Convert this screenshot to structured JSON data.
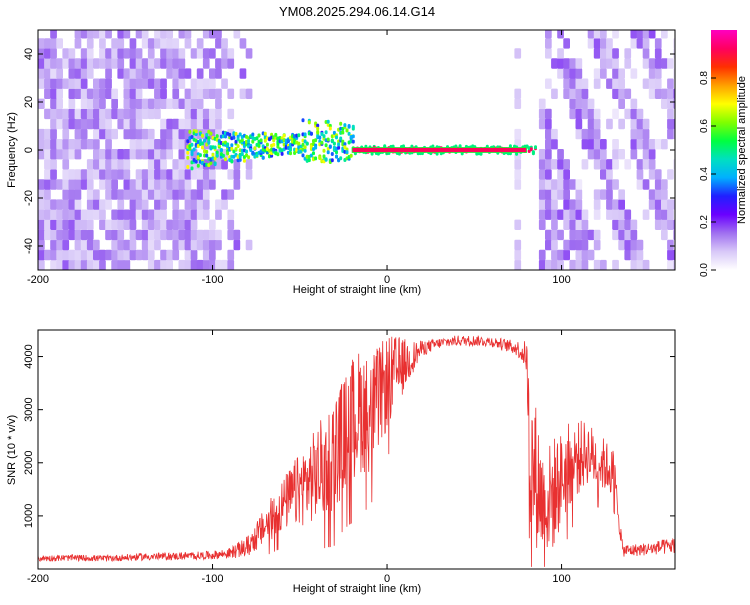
{
  "title": "YM08.2025.294.06.14.G14",
  "colors": {
    "snr_line": "#e83030",
    "spectrogram_low": "#7a1ee8",
    "colorbar_stops": [
      "#ffffff",
      "#d8c8f8",
      "#a070f0",
      "#6a00ff",
      "#2020ff",
      "#00b0ff",
      "#00e0c0",
      "#00ff40",
      "#80ff00",
      "#ffff00",
      "#ffa000",
      "#ff3000",
      "#ff0060",
      "#ff00c0"
    ]
  },
  "chart_data": [
    {
      "type": "heatmap",
      "name": "spectrogram",
      "xlabel": "Height of straight line (km)",
      "ylabel": "Frequency (Hz)",
      "xlim": [
        -200,
        165
      ],
      "ylim": [
        -50,
        50
      ],
      "xticks": [
        -200,
        -100,
        0,
        100
      ],
      "yticks": [
        -40,
        -20,
        0,
        20,
        40
      ],
      "xtick_labels": [
        "-200",
        "-100",
        "0",
        "100"
      ],
      "ytick_labels": [
        "-40",
        "-20",
        "0",
        "20",
        "40"
      ],
      "colorbar": {
        "label": "Normalized spectral amplitude",
        "range": [
          0,
          1
        ],
        "ticks": [
          0.0,
          0.2,
          0.4,
          0.6,
          0.8
        ],
        "tick_labels": [
          "0.0",
          "0.2",
          "0.4",
          "0.6",
          "0.8"
        ]
      },
      "features": {
        "noise_region_left_km": [
          -200,
          -75
        ],
        "signal_carrier_km": [
          -115,
          85
        ],
        "carrier_frequency_hz": 0,
        "dominant_carrier_km": [
          -20,
          80
        ],
        "streaked_noise_region_km": [
          85,
          165
        ]
      }
    },
    {
      "type": "line",
      "name": "snr",
      "xlabel": "Height of straight line (km)",
      "ylabel": "SNR (10 * v/v)",
      "xlim": [
        -200,
        165
      ],
      "ylim": [
        0,
        4500
      ],
      "xticks": [
        -200,
        -100,
        0,
        100
      ],
      "yticks": [
        1000,
        2000,
        3000,
        4000
      ],
      "xtick_labels": [
        "-200",
        "-100",
        "0",
        "100"
      ],
      "ytick_labels": [
        "1000",
        "2000",
        "3000",
        "4000"
      ],
      "series": [
        {
          "name": "SNR",
          "x": [
            -200,
            -180,
            -160,
            -140,
            -120,
            -100,
            -90,
            -80,
            -70,
            -60,
            -50,
            -40,
            -35,
            -30,
            -25,
            -20,
            -15,
            -10,
            -5,
            0,
            5,
            10,
            15,
            20,
            25,
            30,
            40,
            50,
            60,
            70,
            75,
            80,
            82,
            85,
            90,
            95,
            100,
            105,
            110,
            115,
            120,
            125,
            130,
            135,
            140,
            150,
            160,
            165
          ],
          "y": [
            200,
            210,
            200,
            230,
            240,
            260,
            300,
            420,
            800,
            1200,
            1500,
            1800,
            2000,
            2200,
            2500,
            2800,
            3000,
            2900,
            3200,
            3500,
            3700,
            3850,
            4000,
            4150,
            4200,
            4250,
            4300,
            4300,
            4280,
            4200,
            4150,
            4000,
            2000,
            1800,
            1200,
            1400,
            1700,
            2000,
            2100,
            2200,
            2050,
            1950,
            1800,
            350,
            350,
            380,
            420,
            450
          ],
          "noise_amplitude": [
            60,
            60,
            60,
            70,
            70,
            80,
            100,
            200,
            350,
            500,
            700,
            900,
            1000,
            1100,
            1100,
            1200,
            1200,
            1100,
            1000,
            900,
            700,
            500,
            300,
            150,
            120,
            100,
            100,
            100,
            100,
            120,
            150,
            300,
            1500,
            1400,
            1000,
            1100,
            900,
            800,
            700,
            600,
            550,
            500,
            450,
            120,
            120,
            120,
            150,
            150
          ]
        }
      ]
    }
  ]
}
